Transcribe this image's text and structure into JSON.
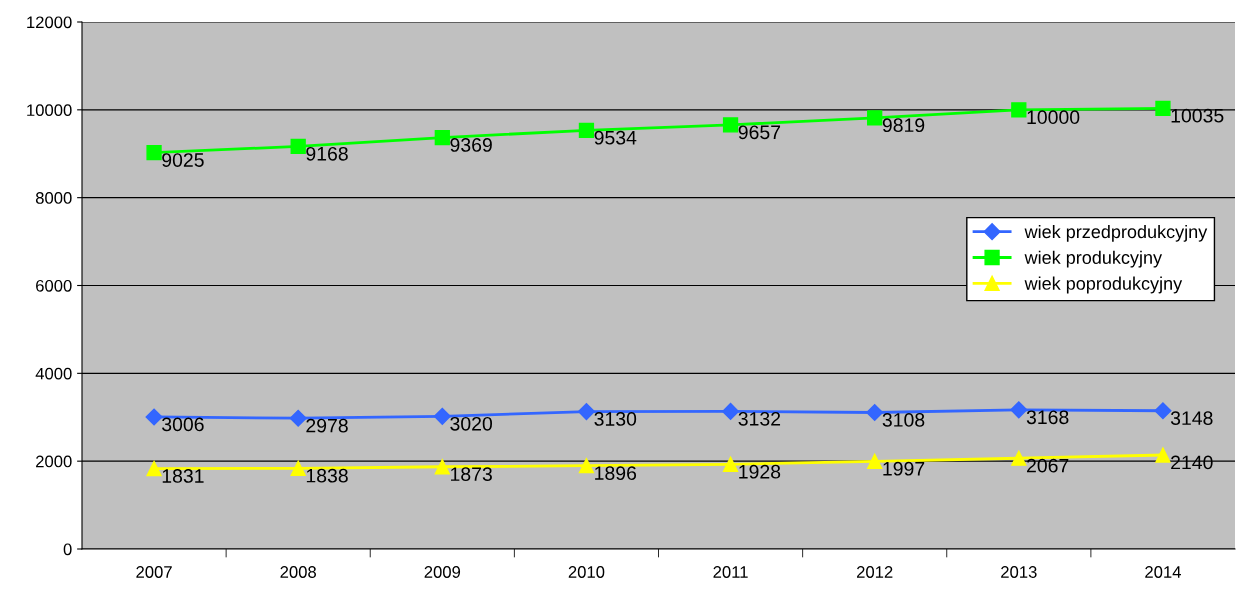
{
  "chart_data": {
    "type": "line",
    "categories": [
      "2007",
      "2008",
      "2009",
      "2010",
      "2011",
      "2012",
      "2013",
      "2014"
    ],
    "series": [
      {
        "name": "wiek przedprodukcyjny",
        "color": "#3366ff",
        "marker": "diamond",
        "values": [
          3006,
          2978,
          3020,
          3130,
          3132,
          3108,
          3168,
          3148
        ]
      },
      {
        "name": "wiek produkcyjny",
        "color": "#00ff00",
        "marker": "square",
        "values": [
          9025,
          9168,
          9369,
          9534,
          9657,
          9819,
          10000,
          10035
        ]
      },
      {
        "name": "wiek poprodukcyjny",
        "color": "#ffff00",
        "marker": "triangle",
        "values": [
          1831,
          1838,
          1873,
          1896,
          1928,
          1997,
          2067,
          2140
        ]
      }
    ],
    "ylim": [
      0,
      12000
    ],
    "yticks": [
      0,
      2000,
      4000,
      6000,
      8000,
      10000,
      12000
    ],
    "grid": "y",
    "legend": "center right",
    "data_labels": true,
    "line_style": "solid"
  }
}
